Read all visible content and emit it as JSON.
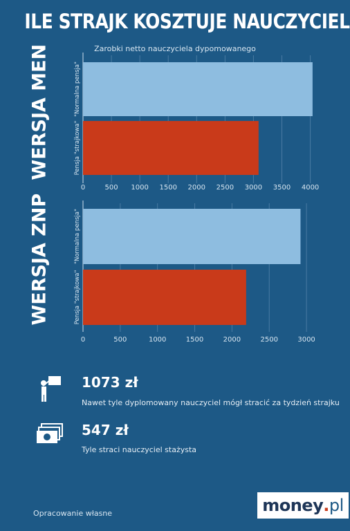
{
  "title": "ILE STRAJK KOSZTUJE NAUCZYCIELI",
  "subtitle": "Zarobki netto nauczyciela dypomowanego",
  "colors": {
    "background": "#1d5986",
    "normal": "#8ebde0",
    "strike": "#c93a1a"
  },
  "chart_data": [
    {
      "type": "bar",
      "orientation": "horizontal",
      "title": "WERSJA MEN",
      "categories": [
        "\"Normalna pensja\"",
        "Pensja \"strajkowa\""
      ],
      "values": [
        4040,
        3090
      ],
      "xlim": [
        0,
        4200
      ],
      "ticks": [
        0,
        500,
        1000,
        1500,
        2000,
        2500,
        3000,
        3500,
        4000
      ],
      "grid": true
    },
    {
      "type": "bar",
      "orientation": "horizontal",
      "title": "WERSJA ZNP",
      "categories": [
        "\"Normalna pensja\"",
        "Pensja \"strajkowa\""
      ],
      "values": [
        2920,
        2190
      ],
      "xlim": [
        0,
        3120
      ],
      "ticks": [
        0,
        500,
        1000,
        1500,
        2000,
        2500,
        3000
      ],
      "grid": true
    }
  ],
  "stats": [
    {
      "icon": "teacher-icon",
      "value": "1073 zł",
      "desc": "Nawet tyle dyplomowany nauczyciel mógł stracić za tydzień strajku"
    },
    {
      "icon": "money-icon",
      "value": "547 zł",
      "desc": "Tyle straci nauczyciel stażysta"
    }
  ],
  "source": "Opracowanie własne",
  "logo": {
    "main": "money",
    "dot": ".",
    "tld": "pl"
  }
}
